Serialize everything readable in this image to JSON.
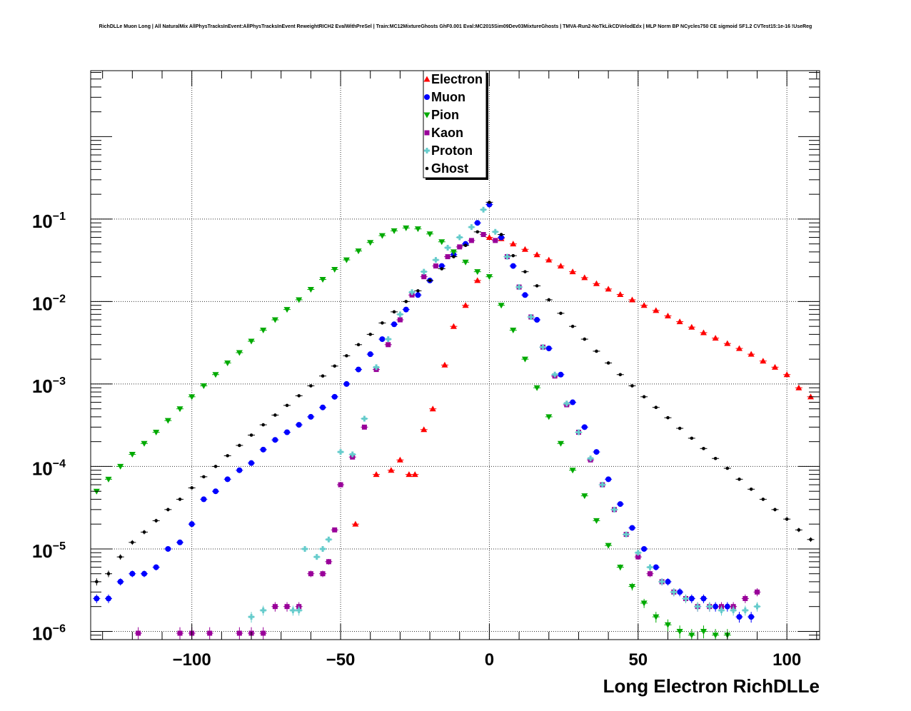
{
  "title": "RichDLLe Muon Long | All NaturalMix AllPhysTracksInEvent:AllPhysTracksInEvent ReweightRICH2 EvalWithPreSel | Train:MC12MixtureGhosts GhF0.001 Eval:MC2015Sim09Dev03MixtureGhosts | TMVA-Run2-NoTkLikCDVelodEdx | MLP Norm BP NCycles750 CE sigmoid SF1.2 CVTest15:1e-16 !UseReg",
  "chart_data": {
    "type": "scatter",
    "xlabel": "Long Electron RichDLLe",
    "ylabel": "",
    "xlim": [
      -134,
      111
    ],
    "ylim_log10": [
      -6.1,
      0.8
    ],
    "y_scale": "log",
    "grid": true,
    "legend_position": "top-center",
    "x_ticks": [
      -100,
      -50,
      0,
      50,
      100
    ],
    "x_tick_labels": [
      "−100",
      "−50",
      "0",
      "50",
      "100"
    ],
    "y_ticks": [
      {
        "base": "10",
        "exp": "−1",
        "value": 0.1
      },
      {
        "base": "10",
        "exp": "−2",
        "value": 0.01
      },
      {
        "base": "10",
        "exp": "−3",
        "value": 0.001
      },
      {
        "base": "10",
        "exp": "−4",
        "value": 0.0001
      },
      {
        "base": "10",
        "exp": "−5",
        "value": 1e-05
      },
      {
        "base": "10",
        "exp": "−6",
        "value": 1e-06
      }
    ],
    "series": [
      {
        "name": "Electron",
        "color": "#ff0000",
        "marker": "triangle-up",
        "x": [
          -45,
          -38,
          -33,
          -30,
          -27,
          -25,
          -22,
          -19,
          -15,
          -12,
          -8,
          -4,
          0,
          4,
          8,
          12,
          16,
          20,
          24,
          28,
          32,
          36,
          40,
          44,
          48,
          52,
          56,
          60,
          64,
          68,
          72,
          76,
          80,
          84,
          88,
          92,
          96,
          100,
          104,
          108
        ],
        "y": [
          2e-05,
          8e-05,
          9e-05,
          0.00012,
          8e-05,
          8e-05,
          0.00028,
          0.0005,
          0.0017,
          0.005,
          0.009,
          0.018,
          0.06,
          0.058,
          0.05,
          0.043,
          0.037,
          0.032,
          0.027,
          0.023,
          0.0195,
          0.0165,
          0.0142,
          0.0122,
          0.0105,
          0.009,
          0.0078,
          0.0067,
          0.0057,
          0.0049,
          0.0042,
          0.0036,
          0.0031,
          0.0027,
          0.0023,
          0.0019,
          0.0016,
          0.0013,
          0.0009,
          0.0007
        ]
      },
      {
        "name": "Muon",
        "color": "#0000ff",
        "marker": "circle",
        "x": [
          -132,
          -128,
          -124,
          -120,
          -116,
          -112,
          -108,
          -104,
          -100,
          -96,
          -92,
          -88,
          -84,
          -80,
          -76,
          -72,
          -68,
          -64,
          -60,
          -56,
          -52,
          -48,
          -44,
          -40,
          -36,
          -32,
          -28,
          -24,
          -20,
          -16,
          -12,
          -8,
          -4,
          0,
          4,
          8,
          12,
          16,
          20,
          24,
          28,
          32,
          36,
          40,
          44,
          48,
          52,
          56,
          60,
          64,
          68,
          72,
          76,
          80,
          84,
          88
        ],
        "y": [
          2.5e-06,
          2.5e-06,
          4e-06,
          5e-06,
          5e-06,
          6e-06,
          1e-05,
          1.2e-05,
          2e-05,
          4e-05,
          5e-05,
          7e-05,
          9e-05,
          0.00011,
          0.00016,
          0.00021,
          0.00026,
          0.00032,
          0.0004,
          0.00052,
          0.0007,
          0.001,
          0.0015,
          0.0023,
          0.0035,
          0.0053,
          0.008,
          0.012,
          0.018,
          0.027,
          0.037,
          0.05,
          0.09,
          0.15,
          0.06,
          0.027,
          0.012,
          0.006,
          0.0027,
          0.0013,
          0.0006,
          0.0003,
          0.00015,
          7e-05,
          3.5e-05,
          1.8e-05,
          1e-05,
          6e-06,
          4e-06,
          3e-06,
          2.5e-06,
          2.5e-06,
          2e-06,
          2e-06,
          1.5e-06,
          1.5e-06
        ]
      },
      {
        "name": "Pion",
        "color": "#00aa00",
        "marker": "triangle-down",
        "x": [
          -132,
          -128,
          -124,
          -120,
          -116,
          -112,
          -108,
          -104,
          -100,
          -96,
          -92,
          -88,
          -84,
          -80,
          -76,
          -72,
          -68,
          -64,
          -60,
          -56,
          -52,
          -48,
          -44,
          -40,
          -36,
          -32,
          -28,
          -24,
          -20,
          -16,
          -12,
          -8,
          -4,
          0,
          4,
          8,
          12,
          16,
          20,
          24,
          28,
          32,
          36,
          40,
          44,
          48,
          52,
          56,
          60,
          64,
          68,
          72,
          76,
          80
        ],
        "y": [
          5e-05,
          7e-05,
          0.0001,
          0.00014,
          0.00019,
          0.00026,
          0.00036,
          0.0005,
          0.0007,
          0.00095,
          0.0013,
          0.0018,
          0.0024,
          0.0033,
          0.0045,
          0.006,
          0.008,
          0.0105,
          0.014,
          0.0185,
          0.0245,
          0.032,
          0.041,
          0.052,
          0.063,
          0.072,
          0.078,
          0.076,
          0.066,
          0.053,
          0.04,
          0.03,
          0.023,
          0.02,
          0.009,
          0.0045,
          0.002,
          0.0009,
          0.0004,
          0.00019,
          9e-05,
          4.4e-05,
          2.2e-05,
          1.1e-05,
          6e-06,
          3.5e-06,
          2.2e-06,
          1.5e-06,
          1.2e-06,
          1e-06,
          9e-07,
          1e-06,
          9e-07,
          9e-07
        ]
      },
      {
        "name": "Kaon",
        "color": "#990099",
        "marker": "square",
        "x": [
          -118,
          -104,
          -100,
          -94,
          -84,
          -80,
          -76,
          -72,
          -68,
          -64,
          -60,
          -56,
          -54,
          -52,
          -50,
          -46,
          -42,
          -38,
          -34,
          -30,
          -26,
          -22,
          -18,
          -14,
          -10,
          -6,
          -2,
          2,
          6,
          10,
          14,
          18,
          22,
          26,
          30,
          34,
          38,
          42,
          46,
          50,
          54,
          58,
          62,
          66,
          70,
          74,
          78,
          82,
          86,
          90
        ],
        "y": [
          9.5e-07,
          9.5e-07,
          9.5e-07,
          9.5e-07,
          9.5e-07,
          9.5e-07,
          9.5e-07,
          2e-06,
          2e-06,
          2e-06,
          5e-06,
          5e-06,
          7e-06,
          1.7e-05,
          6e-05,
          0.00013,
          0.0003,
          0.0015,
          0.003,
          0.006,
          0.012,
          0.02,
          0.027,
          0.035,
          0.046,
          0.055,
          0.065,
          0.055,
          0.035,
          0.015,
          0.0065,
          0.0028,
          0.00125,
          0.00056,
          0.00026,
          0.00012,
          6e-05,
          3e-05,
          1.5e-05,
          8e-06,
          5e-06,
          4e-06,
          3e-06,
          2.5e-06,
          2e-06,
          2e-06,
          2e-06,
          2e-06,
          2.5e-06,
          3e-06
        ]
      },
      {
        "name": "Proton",
        "color": "#66cccc",
        "marker": "cross",
        "x": [
          -80,
          -76,
          -66,
          -64,
          -62,
          -58,
          -56,
          -54,
          -50,
          -46,
          -42,
          -38,
          -34,
          -30,
          -26,
          -22,
          -18,
          -14,
          -10,
          -6,
          -2,
          2,
          6,
          10,
          14,
          18,
          22,
          26,
          30,
          34,
          38,
          42,
          46,
          50,
          54,
          58,
          62,
          66,
          70,
          74,
          78,
          82,
          86,
          90
        ],
        "y": [
          1.5e-06,
          1.8e-06,
          1.8e-06,
          1.8e-06,
          1e-05,
          8e-06,
          1e-05,
          1.3e-05,
          0.00015,
          0.00014,
          0.00038,
          0.0016,
          0.0035,
          0.007,
          0.013,
          0.023,
          0.032,
          0.045,
          0.06,
          0.08,
          0.13,
          0.07,
          0.035,
          0.015,
          0.0065,
          0.0028,
          0.0013,
          0.00058,
          0.00026,
          0.000125,
          6e-05,
          3e-05,
          1.5e-05,
          9e-06,
          6e-06,
          4e-06,
          3e-06,
          2.5e-06,
          2e-06,
          2e-06,
          1.8e-06,
          1.8e-06,
          1.8e-06,
          2e-06
        ]
      },
      {
        "name": "Ghost",
        "color": "#000000",
        "marker": "circle-small",
        "x": [
          -132,
          -128,
          -124,
          -120,
          -116,
          -112,
          -108,
          -104,
          -100,
          -96,
          -92,
          -88,
          -84,
          -80,
          -76,
          -72,
          -68,
          -64,
          -60,
          -56,
          -52,
          -48,
          -44,
          -40,
          -36,
          -32,
          -28,
          -24,
          -20,
          -16,
          -12,
          -8,
          -4,
          0,
          4,
          8,
          12,
          16,
          20,
          24,
          28,
          32,
          36,
          40,
          44,
          48,
          52,
          56,
          60,
          64,
          68,
          72,
          76,
          80,
          84,
          88,
          92,
          96,
          100,
          104,
          108
        ],
        "y": [
          4e-06,
          5e-06,
          8e-06,
          1.2e-05,
          1.6e-05,
          2.2e-05,
          3e-05,
          4e-05,
          5.5e-05,
          7.5e-05,
          0.0001,
          0.000135,
          0.00018,
          0.00024,
          0.00032,
          0.00042,
          0.00055,
          0.00072,
          0.00095,
          0.00125,
          0.00165,
          0.0022,
          0.003,
          0.004,
          0.0055,
          0.0075,
          0.01,
          0.0135,
          0.018,
          0.025,
          0.035,
          0.048,
          0.07,
          0.16,
          0.065,
          0.036,
          0.023,
          0.0155,
          0.0105,
          0.0072,
          0.005,
          0.0035,
          0.0025,
          0.0018,
          0.0013,
          0.00095,
          0.0007,
          0.00052,
          0.00039,
          0.00029,
          0.00022,
          0.000165,
          0.000125,
          9.5e-05,
          7e-05,
          5.3e-05,
          4e-05,
          3e-05,
          2.3e-05,
          1.7e-05,
          1.3e-05
        ]
      }
    ]
  }
}
